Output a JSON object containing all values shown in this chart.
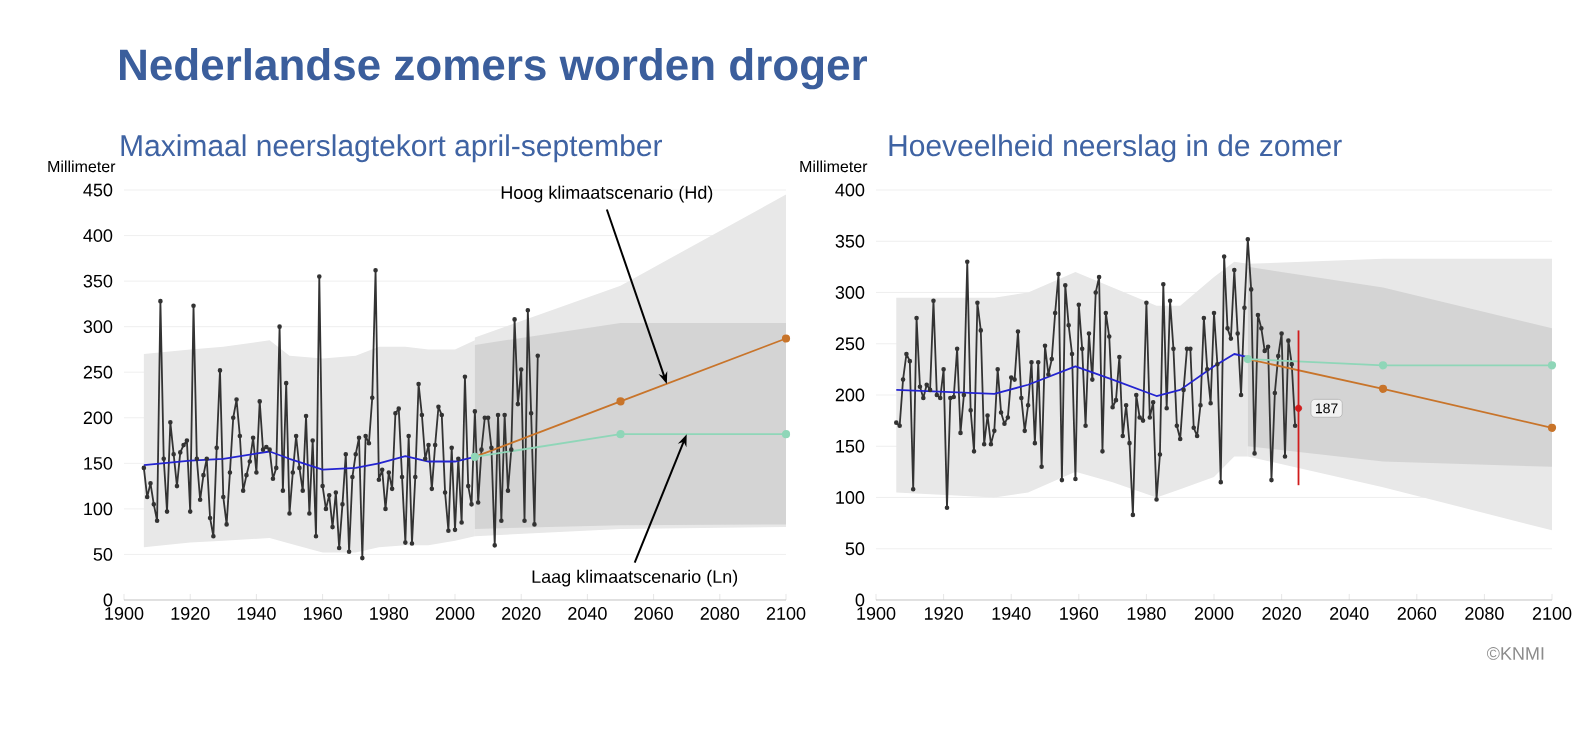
{
  "chart_data": [
    {
      "type": "line",
      "title": "Nederlandse zomers worden droger",
      "subtitle": "Maximaal neerslagtekort april-september",
      "ylabel": "Millimeter",
      "xlim": [
        1900,
        2100
      ],
      "ylim": [
        0,
        450
      ],
      "xticks": [
        1900,
        1920,
        1940,
        1960,
        1980,
        2000,
        2020,
        2040,
        2060,
        2080,
        2100
      ],
      "yticks": [
        0,
        50,
        100,
        150,
        200,
        250,
        300,
        350,
        400,
        450
      ],
      "grid": "y",
      "series": [
        {
          "color": "#333333",
          "marker": "circle",
          "x": [
            1906,
            1907,
            1908,
            1909,
            1910,
            1911,
            1912,
            1913,
            1914,
            1915,
            1916,
            1917,
            1918,
            1919,
            1920,
            1921,
            1922,
            1923,
            1924,
            1925,
            1926,
            1927,
            1928,
            1929,
            1930,
            1931,
            1932,
            1933,
            1934,
            1935,
            1936,
            1937,
            1938,
            1939,
            1940,
            1941,
            1942,
            1943,
            1944,
            1945,
            1946,
            1947,
            1948,
            1949,
            1950,
            1951,
            1952,
            1953,
            1954,
            1955,
            1956,
            1957,
            1958,
            1959,
            1960,
            1961,
            1962,
            1963,
            1964,
            1965,
            1966,
            1967,
            1968,
            1969,
            1970,
            1971,
            1972,
            1973,
            1974,
            1975,
            1976,
            1977,
            1978,
            1979,
            1980,
            1981,
            1982,
            1983,
            1984,
            1985,
            1986,
            1987,
            1988,
            1989,
            1990,
            1991,
            1992,
            1993,
            1994,
            1995,
            1996,
            1997,
            1998,
            1999,
            2000,
            2001,
            2002,
            2003,
            2004,
            2005,
            2006,
            2007,
            2008,
            2009,
            2010,
            2011,
            2012,
            2013,
            2014,
            2015,
            2016,
            2017,
            2018,
            2019,
            2020,
            2021,
            2022,
            2023,
            2024,
            2025
          ],
          "values": [
            145,
            113,
            128,
            105,
            87,
            328,
            155,
            97,
            195,
            160,
            125,
            162,
            170,
            175,
            97,
            323,
            155,
            110,
            137,
            155,
            90,
            70,
            167,
            252,
            113,
            83,
            140,
            200,
            220,
            180,
            120,
            137,
            152,
            178,
            140,
            218,
            165,
            168,
            165,
            133,
            145,
            300,
            120,
            238,
            95,
            140,
            180,
            145,
            120,
            202,
            95,
            175,
            70,
            355,
            125,
            100,
            115,
            80,
            118,
            57,
            105,
            160,
            53,
            135,
            160,
            178,
            46,
            180,
            172,
            222,
            362,
            132,
            143,
            100,
            140,
            122,
            205,
            210,
            135,
            63,
            180,
            62,
            135,
            237,
            203,
            155,
            170,
            122,
            170,
            212,
            203,
            118,
            76,
            167,
            77,
            155,
            85,
            245,
            125,
            105,
            207,
            107,
            165,
            200,
            200,
            167,
            60,
            203,
            87,
            203,
            120,
            165,
            308,
            215,
            253,
            87,
            318,
            205,
            83,
            268
          ]
        },
        {
          "color": "#2424d0",
          "x": [
            1906,
            1920,
            1930,
            1944,
            1950,
            1960,
            1970,
            1977,
            1985,
            1992,
            2000,
            2006
          ],
          "values": [
            148,
            153,
            155,
            163,
            155,
            143,
            145,
            150,
            158,
            152,
            152,
            157
          ],
          "lower": [
            58,
            63,
            65,
            68,
            62,
            52,
            52,
            58,
            60,
            60,
            65,
            70
          ],
          "upper": [
            270,
            275,
            278,
            285,
            268,
            265,
            268,
            278,
            278,
            275,
            275,
            285
          ]
        },
        {
          "color": "#c8742a",
          "marker": "circle",
          "x": [
            2006,
            2050,
            2100
          ],
          "values": [
            157,
            218,
            287
          ],
          "lower": [
            70,
            78,
            80
          ],
          "upper": [
            288,
            345,
            445
          ]
        },
        {
          "color": "#8fd6b8",
          "marker": "circle",
          "x": [
            2006,
            2050,
            2100
          ],
          "values": [
            157,
            182,
            182
          ],
          "lower": [
            78,
            82,
            83
          ],
          "upper": [
            280,
            304,
            304
          ]
        }
      ],
      "annotations": [
        {
          "text": "Hoog klimaatscenario (Hd)",
          "x": 2064,
          "y": 237
        },
        {
          "text": "Laag klimaatscenario (Ln)",
          "x": 2070,
          "y": 182
        }
      ]
    },
    {
      "type": "line",
      "title": "Hoeveelheid neerslag in de zomer",
      "ylabel": "Millimeter",
      "xlim": [
        1900,
        2100
      ],
      "ylim": [
        0,
        400
      ],
      "xticks": [
        1900,
        1920,
        1940,
        1960,
        1980,
        2000,
        2020,
        2040,
        2060,
        2080,
        2100
      ],
      "yticks": [
        0,
        50,
        100,
        150,
        200,
        250,
        300,
        350,
        400
      ],
      "grid": "y",
      "series": [
        {
          "color": "#333333",
          "marker": "circle",
          "x": [
            1906,
            1907,
            1908,
            1909,
            1910,
            1911,
            1912,
            1913,
            1914,
            1915,
            1916,
            1917,
            1918,
            1919,
            1920,
            1921,
            1922,
            1923,
            1924,
            1925,
            1926,
            1927,
            1928,
            1929,
            1930,
            1931,
            1932,
            1933,
            1934,
            1935,
            1936,
            1937,
            1938,
            1939,
            1940,
            1941,
            1942,
            1943,
            1944,
            1945,
            1946,
            1947,
            1948,
            1949,
            1950,
            1951,
            1952,
            1953,
            1954,
            1955,
            1956,
            1957,
            1958,
            1959,
            1960,
            1961,
            1962,
            1963,
            1964,
            1965,
            1966,
            1967,
            1968,
            1969,
            1970,
            1971,
            1972,
            1973,
            1974,
            1975,
            1976,
            1977,
            1978,
            1979,
            1980,
            1981,
            1982,
            1983,
            1984,
            1985,
            1986,
            1987,
            1988,
            1989,
            1990,
            1991,
            1992,
            1993,
            1994,
            1995,
            1996,
            1997,
            1998,
            1999,
            2000,
            2001,
            2002,
            2003,
            2004,
            2005,
            2006,
            2007,
            2008,
            2009,
            2010,
            2011,
            2012,
            2013,
            2014,
            2015,
            2016,
            2017,
            2018,
            2019,
            2020,
            2021,
            2022,
            2023,
            2024
          ],
          "values": [
            173,
            170,
            215,
            240,
            233,
            108,
            275,
            208,
            197,
            210,
            205,
            292,
            200,
            197,
            225,
            90,
            197,
            198,
            245,
            163,
            200,
            330,
            185,
            145,
            290,
            263,
            152,
            180,
            152,
            165,
            225,
            183,
            172,
            178,
            217,
            215,
            262,
            197,
            165,
            190,
            232,
            153,
            232,
            130,
            248,
            220,
            235,
            280,
            318,
            117,
            307,
            268,
            240,
            118,
            288,
            245,
            170,
            260,
            215,
            300,
            315,
            145,
            280,
            257,
            188,
            195,
            237,
            160,
            190,
            153,
            83,
            200,
            178,
            175,
            290,
            178,
            193,
            98,
            142,
            308,
            187,
            292,
            245,
            170,
            157,
            205,
            245,
            245,
            168,
            160,
            190,
            275,
            225,
            192,
            280,
            230,
            115,
            335,
            265,
            255,
            322,
            260,
            200,
            285,
            352,
            303,
            143,
            278,
            265,
            243,
            247,
            117,
            202,
            238,
            260,
            140,
            253,
            230,
            170
          ]
        },
        {
          "color": "#2424d0",
          "x": [
            1906,
            1935,
            1945,
            1959,
            1970,
            1983,
            1990,
            2000,
            2006,
            2010
          ],
          "values": [
            205,
            201,
            210,
            228,
            215,
            199,
            205,
            228,
            240,
            237
          ],
          "lower": [
            105,
            100,
            105,
            125,
            115,
            100,
            108,
            120,
            140,
            140
          ],
          "upper": [
            295,
            295,
            300,
            320,
            305,
            287,
            287,
            315,
            330,
            328
          ]
        },
        {
          "color": "#c8742a",
          "marker": "circle",
          "x": [
            2010,
            2050,
            2100
          ],
          "values": [
            235,
            206,
            168
          ],
          "lower": [
            140,
            110,
            68
          ],
          "upper": [
            328,
            333,
            333
          ]
        },
        {
          "color": "#8fd6b8",
          "marker": "circle",
          "x": [
            2010,
            2050,
            2100
          ],
          "values": [
            235,
            229,
            229
          ],
          "lower": [
            150,
            135,
            130
          ],
          "upper": [
            325,
            305,
            265
          ]
        },
        {
          "type": "scatter",
          "color": "#d01c1c",
          "marker": "circle",
          "x": [
            2025
          ],
          "values": [
            187
          ],
          "errors": [
            [
              112,
              263
            ]
          ],
          "value_labels": [
            "187"
          ]
        }
      ],
      "annotations": [
        "©KNMI"
      ]
    }
  ]
}
